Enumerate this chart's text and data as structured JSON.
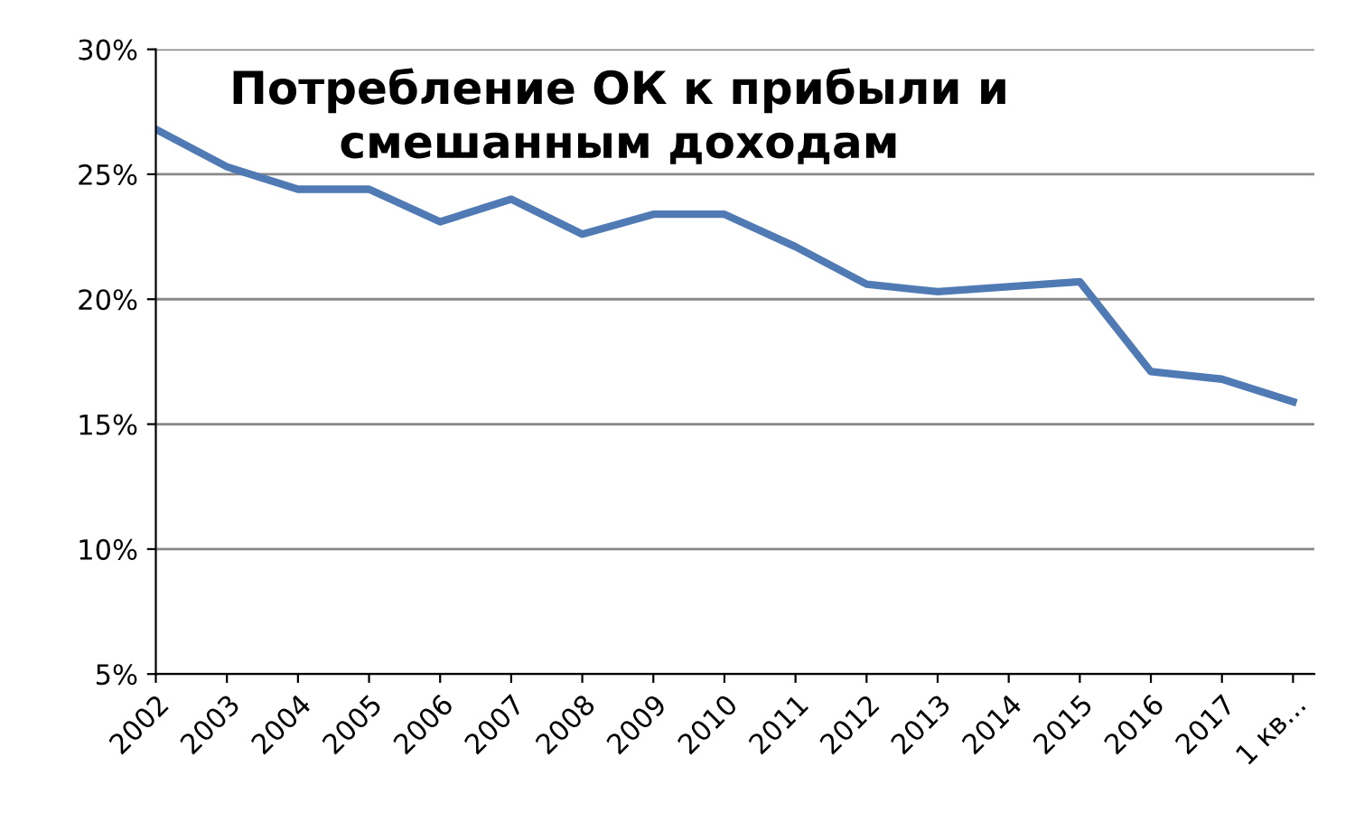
{
  "chart_data": {
    "type": "line",
    "title": "Потребление ОК к прибыли и\nсмешанным доходам",
    "categories": [
      "2002",
      "2003",
      "2004",
      "2005",
      "2006",
      "2007",
      "2008",
      "2009",
      "2010",
      "2011",
      "2012",
      "2013",
      "2014",
      "2015",
      "2016",
      "2017",
      "1 кв..."
    ],
    "series": [
      {
        "color": "#4f7ab3",
        "values": [
          26.8,
          25.3,
          24.4,
          24.4,
          23.1,
          24.0,
          22.6,
          23.4,
          23.4,
          22.1,
          20.6,
          20.3,
          20.5,
          20.7,
          17.1,
          16.8,
          15.9
        ]
      }
    ],
    "ylim": [
      5,
      30
    ],
    "yticks": [
      {
        "value": 5,
        "label": "5%"
      },
      {
        "value": 10,
        "label": "10%"
      },
      {
        "value": 15,
        "label": "15%"
      },
      {
        "value": 20,
        "label": "20%"
      },
      {
        "value": 25,
        "label": "25%"
      },
      {
        "value": 30,
        "label": "30%"
      }
    ],
    "grid": "y",
    "marker": "none",
    "line_style": "solid"
  }
}
